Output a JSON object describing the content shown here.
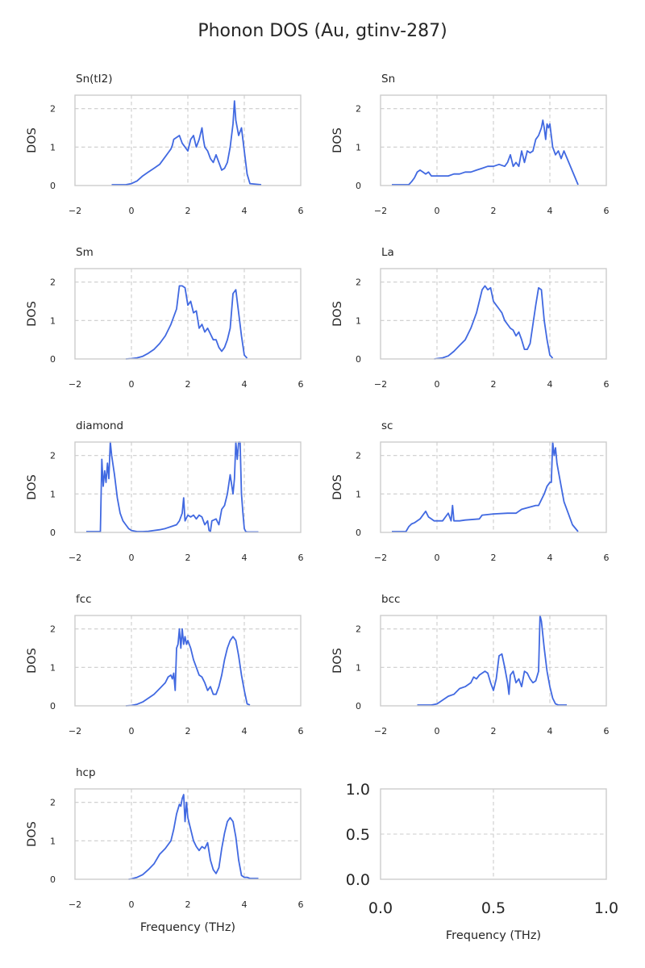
{
  "title": "Phonon DOS (Au, gtinv-287)",
  "colors": {
    "line": "#4169e1",
    "grid": "#cccccc",
    "text": "#262626"
  },
  "chart_data": [
    {
      "type": "line",
      "title": "Sn(tI2)",
      "ylabel": "DOS",
      "xlabel": "",
      "xlim": [
        -2,
        6
      ],
      "ylim": [
        0,
        2.35
      ],
      "xticks": [
        "−2",
        "0",
        "2",
        "4",
        "6"
      ],
      "yticks": [
        "0",
        "1",
        "2"
      ],
      "grid": true,
      "x": [
        -0.7,
        -0.2,
        0,
        0.2,
        0.4,
        0.6,
        0.8,
        1.0,
        1.2,
        1.3,
        1.4,
        1.45,
        1.5,
        1.6,
        1.7,
        1.8,
        1.9,
        2.0,
        2.1,
        2.2,
        2.3,
        2.4,
        2.5,
        2.55,
        2.6,
        2.7,
        2.8,
        2.9,
        3.0,
        3.1,
        3.2,
        3.3,
        3.4,
        3.5,
        3.6,
        3.65,
        3.7,
        3.8,
        3.9,
        4.0,
        4.1,
        4.2,
        4.6
      ],
      "y": [
        0.02,
        0.02,
        0.05,
        0.12,
        0.25,
        0.35,
        0.45,
        0.55,
        0.75,
        0.85,
        0.95,
        1.05,
        1.2,
        1.25,
        1.3,
        1.1,
        1.0,
        0.9,
        1.2,
        1.3,
        1.0,
        1.2,
        1.5,
        1.2,
        1.0,
        0.9,
        0.7,
        0.6,
        0.8,
        0.6,
        0.4,
        0.45,
        0.6,
        1.0,
        1.6,
        2.2,
        1.7,
        1.3,
        1.5,
        0.9,
        0.3,
        0.05,
        0.02
      ]
    },
    {
      "type": "line",
      "title": "Sn",
      "ylabel": "DOS",
      "xlabel": "",
      "xlim": [
        -2,
        6
      ],
      "ylim": [
        0,
        2.35
      ],
      "xticks": [
        "−2",
        "0",
        "2",
        "4",
        "6"
      ],
      "yticks": [
        "0",
        "1",
        "2"
      ],
      "grid": true,
      "x": [
        -1.6,
        -1.0,
        -0.9,
        -0.8,
        -0.7,
        -0.6,
        -0.5,
        -0.4,
        -0.3,
        -0.2,
        0,
        0.4,
        0.6,
        0.8,
        1.0,
        1.2,
        1.4,
        1.6,
        1.8,
        2.0,
        2.2,
        2.4,
        2.5,
        2.6,
        2.7,
        2.8,
        2.9,
        3.0,
        3.1,
        3.2,
        3.3,
        3.4,
        3.5,
        3.6,
        3.7,
        3.75,
        3.8,
        3.85,
        3.9,
        3.95,
        4.0,
        4.1,
        4.2,
        4.3,
        4.4,
        4.5,
        5.0
      ],
      "y": [
        0.02,
        0.02,
        0.1,
        0.2,
        0.35,
        0.4,
        0.35,
        0.3,
        0.35,
        0.25,
        0.25,
        0.25,
        0.3,
        0.3,
        0.35,
        0.35,
        0.4,
        0.45,
        0.5,
        0.5,
        0.55,
        0.5,
        0.6,
        0.8,
        0.5,
        0.6,
        0.5,
        0.9,
        0.6,
        0.9,
        0.85,
        0.9,
        1.2,
        1.3,
        1.5,
        1.7,
        1.5,
        1.2,
        1.6,
        1.5,
        1.6,
        1.0,
        0.8,
        0.9,
        0.7,
        0.9,
        0.02
      ]
    },
    {
      "type": "line",
      "title": "Sm",
      "ylabel": "DOS",
      "xlabel": "",
      "xlim": [
        -2,
        6
      ],
      "ylim": [
        0,
        2.35
      ],
      "xticks": [
        "−2",
        "0",
        "2",
        "4",
        "6"
      ],
      "yticks": [
        "0",
        "1",
        "2"
      ],
      "grid": true,
      "x": [
        -0.2,
        0,
        0.2,
        0.4,
        0.6,
        0.8,
        1.0,
        1.2,
        1.4,
        1.6,
        1.7,
        1.8,
        1.9,
        2.0,
        2.1,
        2.2,
        2.3,
        2.4,
        2.5,
        2.6,
        2.7,
        2.8,
        2.9,
        3.0,
        3.1,
        3.2,
        3.3,
        3.4,
        3.5,
        3.6,
        3.7,
        3.8,
        3.9,
        4.0,
        4.1
      ],
      "y": [
        0.0,
        0.01,
        0.03,
        0.07,
        0.15,
        0.25,
        0.4,
        0.6,
        0.9,
        1.3,
        1.9,
        1.9,
        1.85,
        1.4,
        1.5,
        1.2,
        1.25,
        0.8,
        0.9,
        0.7,
        0.8,
        0.65,
        0.5,
        0.5,
        0.3,
        0.2,
        0.3,
        0.5,
        0.8,
        1.7,
        1.8,
        1.2,
        0.6,
        0.1,
        0.02
      ]
    },
    {
      "type": "line",
      "title": "La",
      "ylabel": "DOS",
      "xlabel": "",
      "xlim": [
        -2,
        6
      ],
      "ylim": [
        0,
        2.35
      ],
      "xticks": [
        "−2",
        "0",
        "2",
        "4",
        "6"
      ],
      "yticks": [
        "0",
        "1",
        "2"
      ],
      "grid": true,
      "x": [
        -0.1,
        0,
        0.2,
        0.4,
        0.6,
        0.8,
        1.0,
        1.2,
        1.4,
        1.5,
        1.6,
        1.7,
        1.8,
        1.9,
        2.0,
        2.1,
        2.2,
        2.3,
        2.4,
        2.5,
        2.6,
        2.7,
        2.8,
        2.9,
        3.0,
        3.1,
        3.2,
        3.3,
        3.4,
        3.5,
        3.6,
        3.7,
        3.8,
        3.9,
        4.0,
        4.1
      ],
      "y": [
        0.0,
        0.01,
        0.03,
        0.08,
        0.2,
        0.35,
        0.5,
        0.8,
        1.2,
        1.5,
        1.8,
        1.9,
        1.8,
        1.85,
        1.5,
        1.4,
        1.3,
        1.2,
        1.0,
        0.9,
        0.8,
        0.75,
        0.6,
        0.7,
        0.5,
        0.25,
        0.25,
        0.4,
        0.9,
        1.4,
        1.85,
        1.8,
        1.0,
        0.5,
        0.1,
        0.02
      ]
    },
    {
      "type": "line",
      "title": "diamond",
      "ylabel": "DOS",
      "xlabel": "",
      "xlim": [
        -2,
        6
      ],
      "ylim": [
        0,
        2.35
      ],
      "xticks": [
        "−2",
        "0",
        "2",
        "4",
        "6"
      ],
      "yticks": [
        "0",
        "1",
        "2"
      ],
      "grid": true,
      "x": [
        -1.6,
        -1.1,
        -1.05,
        -1.0,
        -0.95,
        -0.9,
        -0.85,
        -0.8,
        -0.75,
        -0.7,
        -0.6,
        -0.5,
        -0.4,
        -0.3,
        -0.2,
        -0.1,
        0,
        0.2,
        0.4,
        0.6,
        0.8,
        1.0,
        1.2,
        1.4,
        1.6,
        1.7,
        1.8,
        1.85,
        1.9,
        2.0,
        2.1,
        2.2,
        2.3,
        2.4,
        2.5,
        2.6,
        2.7,
        2.75,
        2.8,
        2.85,
        3.0,
        3.1,
        3.2,
        3.3,
        3.4,
        3.5,
        3.6,
        3.65,
        3.7,
        3.75,
        3.8,
        3.85,
        3.9,
        3.95,
        4.0,
        4.05,
        4.1,
        4.5
      ],
      "y": [
        0.02,
        0.02,
        1.9,
        1.2,
        1.6,
        1.3,
        1.8,
        1.4,
        2.35,
        2.0,
        1.5,
        0.9,
        0.5,
        0.3,
        0.2,
        0.1,
        0.05,
        0.02,
        0.02,
        0.03,
        0.05,
        0.07,
        0.1,
        0.15,
        0.2,
        0.3,
        0.5,
        0.9,
        0.3,
        0.45,
        0.4,
        0.45,
        0.35,
        0.45,
        0.4,
        0.2,
        0.3,
        0.05,
        0.03,
        0.3,
        0.35,
        0.2,
        0.6,
        0.7,
        1.0,
        1.5,
        1.0,
        1.4,
        2.35,
        1.9,
        2.35,
        2.35,
        1.0,
        0.5,
        0.1,
        0.02,
        0.01,
        0.01
      ]
    },
    {
      "type": "line",
      "title": "sc",
      "ylabel": "DOS",
      "xlabel": "",
      "xlim": [
        -2,
        6
      ],
      "ylim": [
        0,
        2.35
      ],
      "xticks": [
        "−2",
        "0",
        "2",
        "4",
        "6"
      ],
      "yticks": [
        "0",
        "1",
        "2"
      ],
      "grid": true,
      "x": [
        -1.6,
        -1.1,
        -1.0,
        -0.9,
        -0.8,
        -0.6,
        -0.5,
        -0.4,
        -0.3,
        -0.2,
        -0.1,
        0,
        0.2,
        0.3,
        0.4,
        0.5,
        0.55,
        0.6,
        0.8,
        1.0,
        1.5,
        1.6,
        2.0,
        2.5,
        2.8,
        3.0,
        3.5,
        3.6,
        3.8,
        3.9,
        4.0,
        4.05,
        4.1,
        4.15,
        4.2,
        4.25,
        4.3,
        4.4,
        4.5,
        4.6,
        4.7,
        4.8,
        5.0
      ],
      "y": [
        0.02,
        0.02,
        0.15,
        0.22,
        0.25,
        0.35,
        0.45,
        0.55,
        0.4,
        0.35,
        0.3,
        0.3,
        0.3,
        0.4,
        0.5,
        0.3,
        0.7,
        0.3,
        0.3,
        0.32,
        0.35,
        0.45,
        0.48,
        0.5,
        0.5,
        0.6,
        0.7,
        0.7,
        1.0,
        1.2,
        1.3,
        1.3,
        2.35,
        2.0,
        2.2,
        1.8,
        1.6,
        1.2,
        0.8,
        0.6,
        0.4,
        0.2,
        0.02
      ]
    },
    {
      "type": "line",
      "title": "fcc",
      "ylabel": "DOS",
      "xlabel": "",
      "xlim": [
        -2,
        6
      ],
      "ylim": [
        0,
        2.35
      ],
      "xticks": [
        "−2",
        "0",
        "2",
        "4",
        "6"
      ],
      "yticks": [
        "0",
        "1",
        "2"
      ],
      "grid": true,
      "x": [
        -0.2,
        0,
        0.2,
        0.4,
        0.6,
        0.8,
        1.0,
        1.2,
        1.3,
        1.4,
        1.45,
        1.5,
        1.55,
        1.6,
        1.65,
        1.7,
        1.75,
        1.8,
        1.85,
        1.9,
        1.95,
        2.0,
        2.1,
        2.2,
        2.3,
        2.4,
        2.5,
        2.6,
        2.7,
        2.8,
        2.9,
        3.0,
        3.1,
        3.2,
        3.3,
        3.4,
        3.5,
        3.6,
        3.7,
        3.8,
        3.9,
        4.0,
        4.1,
        4.2
      ],
      "y": [
        0.0,
        0.01,
        0.04,
        0.1,
        0.2,
        0.3,
        0.45,
        0.6,
        0.75,
        0.8,
        0.7,
        0.85,
        0.4,
        1.5,
        1.6,
        2.0,
        1.5,
        2.0,
        1.6,
        1.8,
        1.6,
        1.7,
        1.5,
        1.2,
        1.0,
        0.8,
        0.75,
        0.6,
        0.4,
        0.5,
        0.3,
        0.3,
        0.5,
        0.8,
        1.2,
        1.5,
        1.7,
        1.8,
        1.7,
        1.3,
        0.8,
        0.4,
        0.05,
        0.02
      ]
    },
    {
      "type": "line",
      "title": "bcc",
      "ylabel": "DOS",
      "xlabel": "",
      "xlim": [
        -2,
        6
      ],
      "ylim": [
        0,
        2.35
      ],
      "xticks": [
        "−2",
        "0",
        "2",
        "4",
        "6"
      ],
      "yticks": [
        "0",
        "1",
        "2"
      ],
      "grid": true,
      "x": [
        -0.7,
        -0.2,
        0,
        0.2,
        0.4,
        0.6,
        0.8,
        1.0,
        1.2,
        1.3,
        1.4,
        1.5,
        1.6,
        1.7,
        1.8,
        1.9,
        2.0,
        2.1,
        2.2,
        2.3,
        2.4,
        2.5,
        2.55,
        2.6,
        2.7,
        2.8,
        2.9,
        3.0,
        3.1,
        3.2,
        3.3,
        3.4,
        3.5,
        3.6,
        3.65,
        3.7,
        3.8,
        3.9,
        4.0,
        4.1,
        4.2,
        4.3,
        4.6
      ],
      "y": [
        0.02,
        0.02,
        0.05,
        0.15,
        0.25,
        0.3,
        0.45,
        0.5,
        0.6,
        0.75,
        0.7,
        0.8,
        0.85,
        0.9,
        0.85,
        0.6,
        0.4,
        0.7,
        1.3,
        1.35,
        1.0,
        0.6,
        0.3,
        0.8,
        0.9,
        0.6,
        0.7,
        0.5,
        0.9,
        0.85,
        0.7,
        0.6,
        0.65,
        0.9,
        2.35,
        2.2,
        1.5,
        0.9,
        0.5,
        0.2,
        0.05,
        0.02,
        0.02
      ]
    },
    {
      "type": "line",
      "title": "hcp",
      "ylabel": "DOS",
      "xlabel": "Frequency (THz)",
      "xlim": [
        -2,
        6
      ],
      "ylim": [
        0,
        2.35
      ],
      "xticks": [
        "−2",
        "0",
        "2",
        "4",
        "6"
      ],
      "yticks": [
        "0",
        "1",
        "2"
      ],
      "grid": true,
      "x": [
        -0.1,
        0,
        0.2,
        0.4,
        0.6,
        0.8,
        1.0,
        1.2,
        1.4,
        1.5,
        1.6,
        1.7,
        1.75,
        1.8,
        1.85,
        1.9,
        1.95,
        2.0,
        2.1,
        2.2,
        2.3,
        2.4,
        2.5,
        2.6,
        2.7,
        2.8,
        2.9,
        3.0,
        3.1,
        3.2,
        3.3,
        3.4,
        3.5,
        3.6,
        3.7,
        3.8,
        3.9,
        4.0,
        4.1,
        4.2,
        4.5
      ],
      "y": [
        0.0,
        0.01,
        0.05,
        0.12,
        0.25,
        0.4,
        0.65,
        0.8,
        1.0,
        1.3,
        1.7,
        1.95,
        1.9,
        2.1,
        2.2,
        1.5,
        2.0,
        1.6,
        1.3,
        1.0,
        0.85,
        0.75,
        0.85,
        0.8,
        0.95,
        0.5,
        0.25,
        0.15,
        0.3,
        0.8,
        1.2,
        1.5,
        1.6,
        1.5,
        1.1,
        0.5,
        0.1,
        0.05,
        0.05,
        0.02,
        0.02
      ]
    },
    {
      "type": "line",
      "title": "",
      "ylabel": "",
      "xlabel": "Frequency (THz)",
      "xlim": [
        0,
        1
      ],
      "ylim": [
        0,
        1
      ],
      "xticks": [
        "0.0",
        "0.5",
        "1.0"
      ],
      "yticks": [
        "0.0",
        "0.5",
        "1.0"
      ],
      "grid": true,
      "x": [],
      "y": []
    }
  ]
}
